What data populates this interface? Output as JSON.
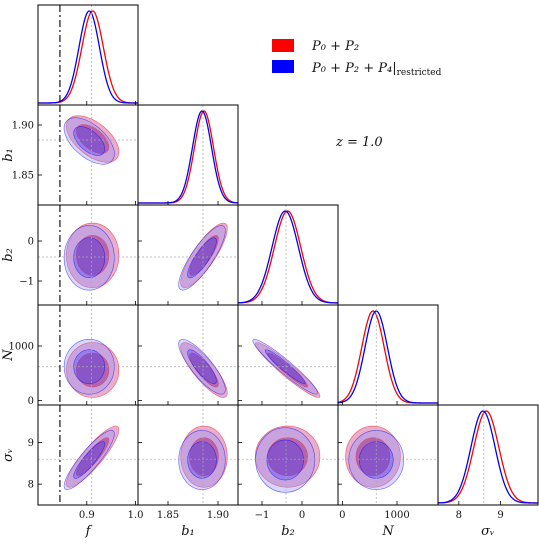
{
  "chart_data": {
    "type": "corner",
    "parameters": [
      {
        "key": "f",
        "label": "f",
        "fiducial": 0.91,
        "range": [
          0.8,
          1.005
        ],
        "ticks": [
          0.9,
          1.0
        ],
        "tick_labels": [
          "0.9",
          "1.0"
        ]
      },
      {
        "key": "b1",
        "label": "b₁",
        "fiducial": 1.885,
        "range": [
          1.82,
          1.92
        ],
        "ticks": [
          1.85,
          1.9
        ],
        "tick_labels": [
          "1.85",
          "1.90"
        ]
      },
      {
        "key": "b2",
        "label": "b₂",
        "fiducial": -0.4,
        "range": [
          -1.6,
          0.9
        ],
        "ticks": [
          -1,
          0
        ],
        "tick_labels": [
          "−1",
          "0"
        ]
      },
      {
        "key": "N",
        "label": "N",
        "fiducial": 620,
        "range": [
          -80,
          1750
        ],
        "ticks": [
          0,
          1000
        ],
        "tick_labels": [
          "0",
          "1000"
        ]
      },
      {
        "key": "sigma_v",
        "label": "σᵥ",
        "fiducial": 8.6,
        "range": [
          7.5,
          9.9
        ],
        "ticks": [
          8,
          9
        ],
        "tick_labels": [
          "8",
          "9"
        ]
      }
    ],
    "annotation": "z = 1.0",
    "vertical_dashdot_line": {
      "parameter": "f",
      "value": 0.845
    },
    "series": [
      {
        "name": "P₀ + P₂",
        "color": "#ff0000",
        "peaks": {
          "f": 0.912,
          "b1": 1.886,
          "b2": -0.36,
          "N": 560,
          "sigma_v": 8.66
        },
        "widths": {
          "f": 0.022,
          "b1": 0.0095,
          "b2": 0.33,
          "N": 205,
          "sigma_v": 0.3
        }
      },
      {
        "name": "P₀ + P₂ + P₄|restricted",
        "color": "#0000ff",
        "peaks": {
          "f": 0.905,
          "b1": 1.884,
          "b2": -0.42,
          "N": 620,
          "sigma_v": 8.58
        },
        "widths": {
          "f": 0.021,
          "b1": 0.0095,
          "b2": 0.33,
          "N": 205,
          "sigma_v": 0.29
        }
      }
    ],
    "correlations": {
      "f|b1": -0.55,
      "f|b2": 0.0,
      "f|N": 0.0,
      "f|sigma_v": 0.88,
      "b1|b2": 0.83,
      "b1|N": -0.83,
      "b1|sigma_v": 0.0,
      "b2|N": -0.95,
      "b2|sigma_v": 0.0,
      "N|sigma_v": 0.0
    },
    "legend_position": "top-right",
    "colors": {
      "red": "#ff0000",
      "blue": "#0000ff",
      "fill_outer": "#b25fa8",
      "fill_inner": "#8b0a55"
    },
    "grid": false
  },
  "annotation_text": "z = 1.0",
  "legend": {
    "label1": "P₀ + P₂",
    "label2_main": "P₀ + P₂ + P₄|",
    "label2_sub": "restricted"
  }
}
